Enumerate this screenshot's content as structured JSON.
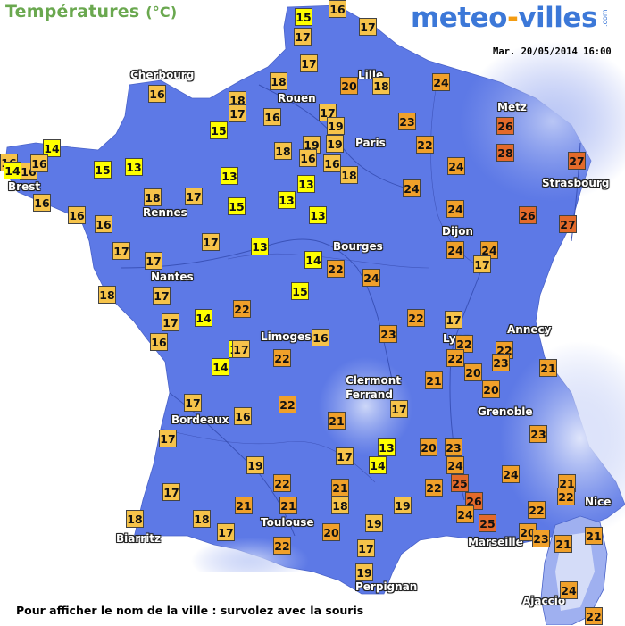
{
  "header": {
    "title": "Températures",
    "unit": "(°C)",
    "logo_part1": "meteo",
    "logo_part2": "-",
    "logo_part3": "villes",
    "logo_sub": ".com",
    "date": "Mar. 20/05/2014 16:00"
  },
  "footer": {
    "hint": "Pour afficher le nom de la ville : survolez avec la souris"
  },
  "colors": {
    "sea": "#ffffff",
    "land_low": "#5b78e6",
    "land_high": "#c9d3f7",
    "temp_12_15": "#ffff00",
    "temp_16_19": "#f6c34a",
    "temp_20_24": "#f0a02a",
    "temp_25_plus": "#e36a2a"
  },
  "cities": [
    "Cherbourg",
    "Rouen",
    "Lille",
    "Paris",
    "Metz",
    "Brest",
    "Strasbourg",
    "Rennes",
    "Dijon",
    "Bourges",
    "Nantes",
    "Annecy",
    "Lyon",
    "Limoges",
    "Clermont",
    "Ferrand",
    "Grenoble",
    "Bordeaux",
    "Nice",
    "Toulouse",
    "Biarritz",
    "Marseille",
    "Perpignan",
    "Ajaccio"
  ],
  "temperatures": [
    "16",
    "15",
    "17",
    "17",
    "17",
    "18",
    "20",
    "18",
    "24",
    "16",
    "18",
    "17",
    "15",
    "16",
    "17",
    "19",
    "23",
    "26",
    "16",
    "16",
    "14",
    "19",
    "22",
    "28",
    "27",
    "14",
    "16",
    "15",
    "18",
    "19",
    "13",
    "16",
    "16",
    "18",
    "24",
    "16",
    "18",
    "17",
    "13",
    "13",
    "24",
    "26",
    "27",
    "16",
    "16",
    "13",
    "17",
    "15",
    "13",
    "17",
    "17",
    "13",
    "24",
    "24",
    "24",
    "17",
    "14",
    "22",
    "18",
    "17",
    "15",
    "24",
    "17",
    "16",
    "14",
    "22",
    "22",
    "17",
    "16",
    "23",
    "22",
    "12",
    "17",
    "14",
    "22",
    "22",
    "22",
    "23",
    "22",
    "17",
    "22",
    "21",
    "20",
    "20",
    "21",
    "16",
    "21",
    "17",
    "17",
    "23",
    "17",
    "13",
    "20",
    "23",
    "24",
    "24",
    "19",
    "14",
    "25",
    "22",
    "21",
    "17",
    "22",
    "26",
    "21",
    "22",
    "21",
    "18",
    "21",
    "24",
    "25",
    "22",
    "18",
    "18",
    "20",
    "19",
    "19",
    "20",
    "23",
    "21",
    "17",
    "22",
    "19",
    "24",
    "21",
    "17",
    "22"
  ]
}
